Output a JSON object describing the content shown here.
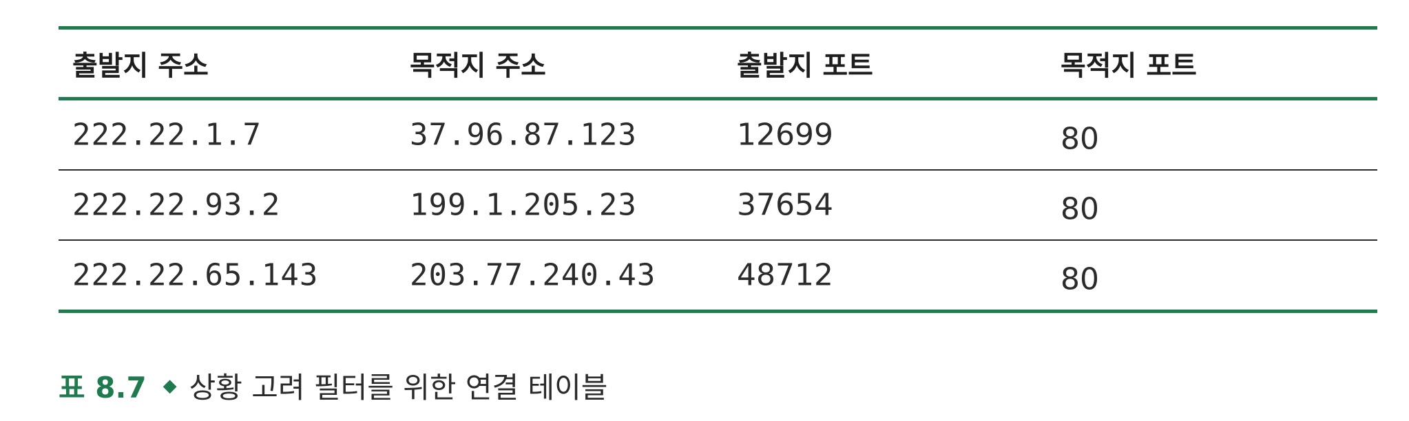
{
  "table": {
    "headers": [
      "출발지 주소",
      "목적지 주소",
      "출발지 포트",
      "목적지 포트"
    ],
    "rows": [
      [
        "222.22.1.7",
        "37.96.87.123",
        "12699",
        "80"
      ],
      [
        "222.22.93.2",
        "199.1.205.23",
        "37654",
        "80"
      ],
      [
        "222.22.65.143",
        "203.77.240.43",
        "48712",
        "80"
      ]
    ]
  },
  "caption": {
    "label": "표 8.7",
    "bullet_icon": "diamond-icon",
    "text": "상황 고려 필터를 위한 연결 테이블"
  },
  "colors": {
    "accent": "#1f7a4d",
    "rule": "#2a2a2a",
    "text": "#2b2b2b"
  }
}
